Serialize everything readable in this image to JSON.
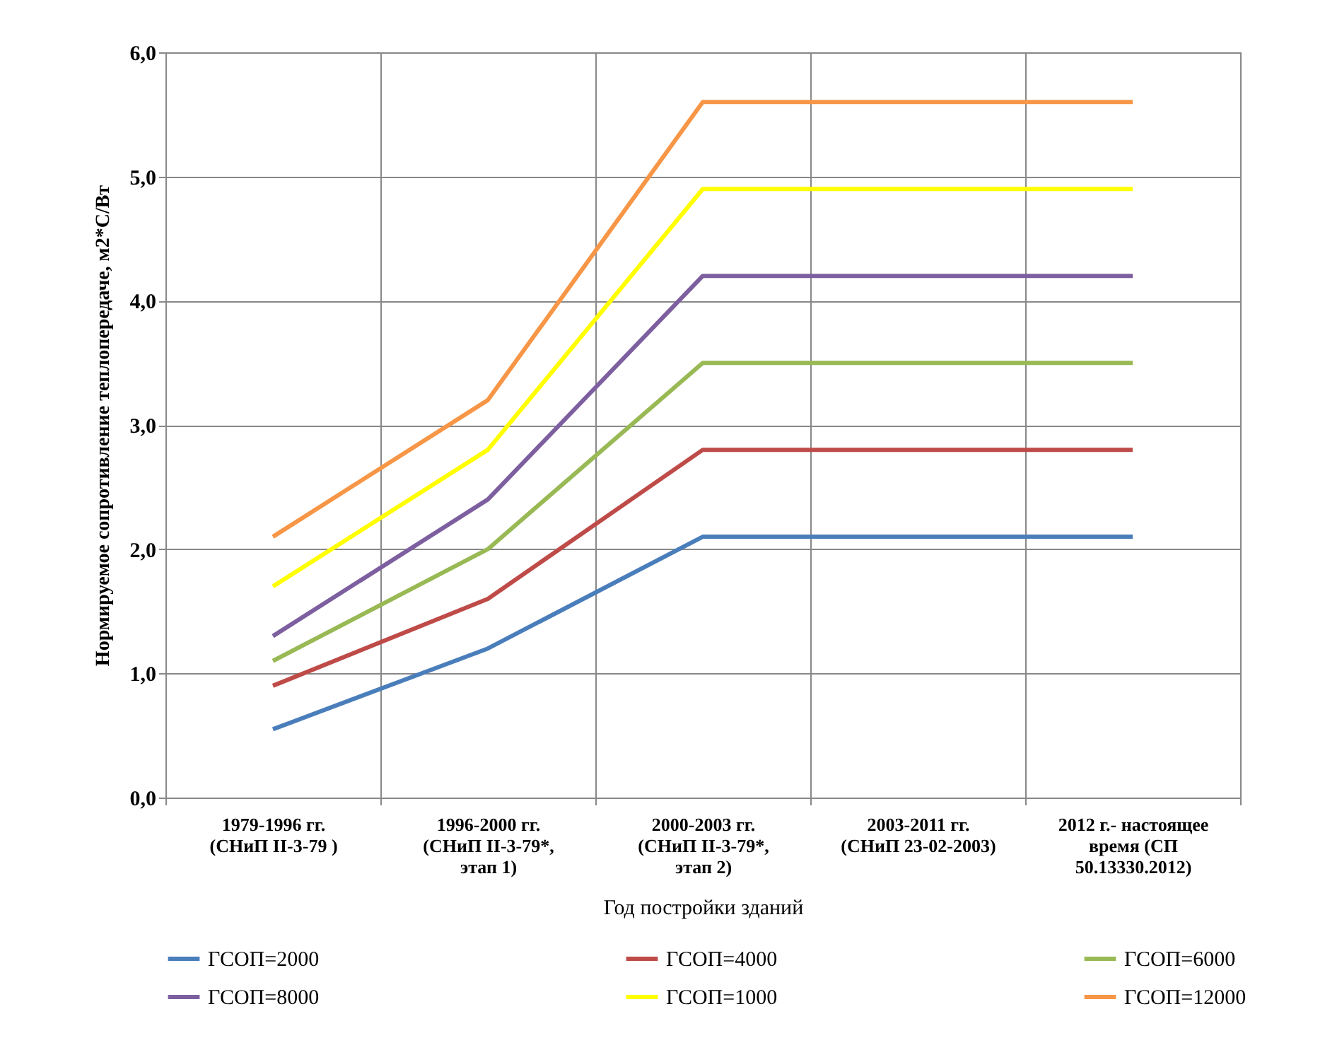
{
  "chart_data": {
    "type": "line",
    "xlabel": "Год постройки зданий",
    "ylabel": "Нормируемое сопротивление теплопередаче, м2*С/Вт",
    "categories": [
      "1979-1996 гг.\n(СНиП II-3-79 )",
      "1996-2000 гг.\n(СНиП II-3-79*,\nэтап 1)",
      "2000-2003 гг.\n(СНиП II-3-79*,\nэтап 2)",
      "2003-2011 гг.\n(СНиП 23-02-2003)",
      "2012 г.- настоящее\nвремя (СП\n50.13330.2012)"
    ],
    "series": [
      {
        "name": "ГСОП=2000",
        "color": "#4a7ebb",
        "values": [
          0.55,
          1.2,
          2.1,
          2.1,
          2.1
        ]
      },
      {
        "name": "ГСОП=4000",
        "color": "#be4b48",
        "values": [
          0.9,
          1.6,
          2.8,
          2.8,
          2.8
        ]
      },
      {
        "name": "ГСОП=6000",
        "color": "#98b954",
        "values": [
          1.1,
          2.0,
          3.5,
          3.5,
          3.5
        ]
      },
      {
        "name": "ГСОП=8000",
        "color": "#7d5fa0",
        "values": [
          1.3,
          2.4,
          4.2,
          4.2,
          4.2
        ]
      },
      {
        "name": "ГСОП=1000",
        "color": "#ffff00",
        "values": [
          1.7,
          2.8,
          4.9,
          4.9,
          4.9
        ]
      },
      {
        "name": "ГСОП=12000",
        "color": "#f79646",
        "values": [
          2.1,
          3.2,
          5.6,
          5.6,
          5.6
        ]
      }
    ],
    "ylim": [
      0,
      6
    ],
    "yticks": [
      {
        "value": 0,
        "label": "0,0"
      },
      {
        "value": 1,
        "label": "1,0"
      },
      {
        "value": 2,
        "label": "2,0"
      },
      {
        "value": 3,
        "label": "3,0"
      },
      {
        "value": 4,
        "label": "4,0"
      },
      {
        "value": 5,
        "label": "5,0"
      },
      {
        "value": 6,
        "label": "6,0"
      }
    ],
    "grid": true,
    "legend": "bottom",
    "marker": "none",
    "line_style": "solid"
  }
}
